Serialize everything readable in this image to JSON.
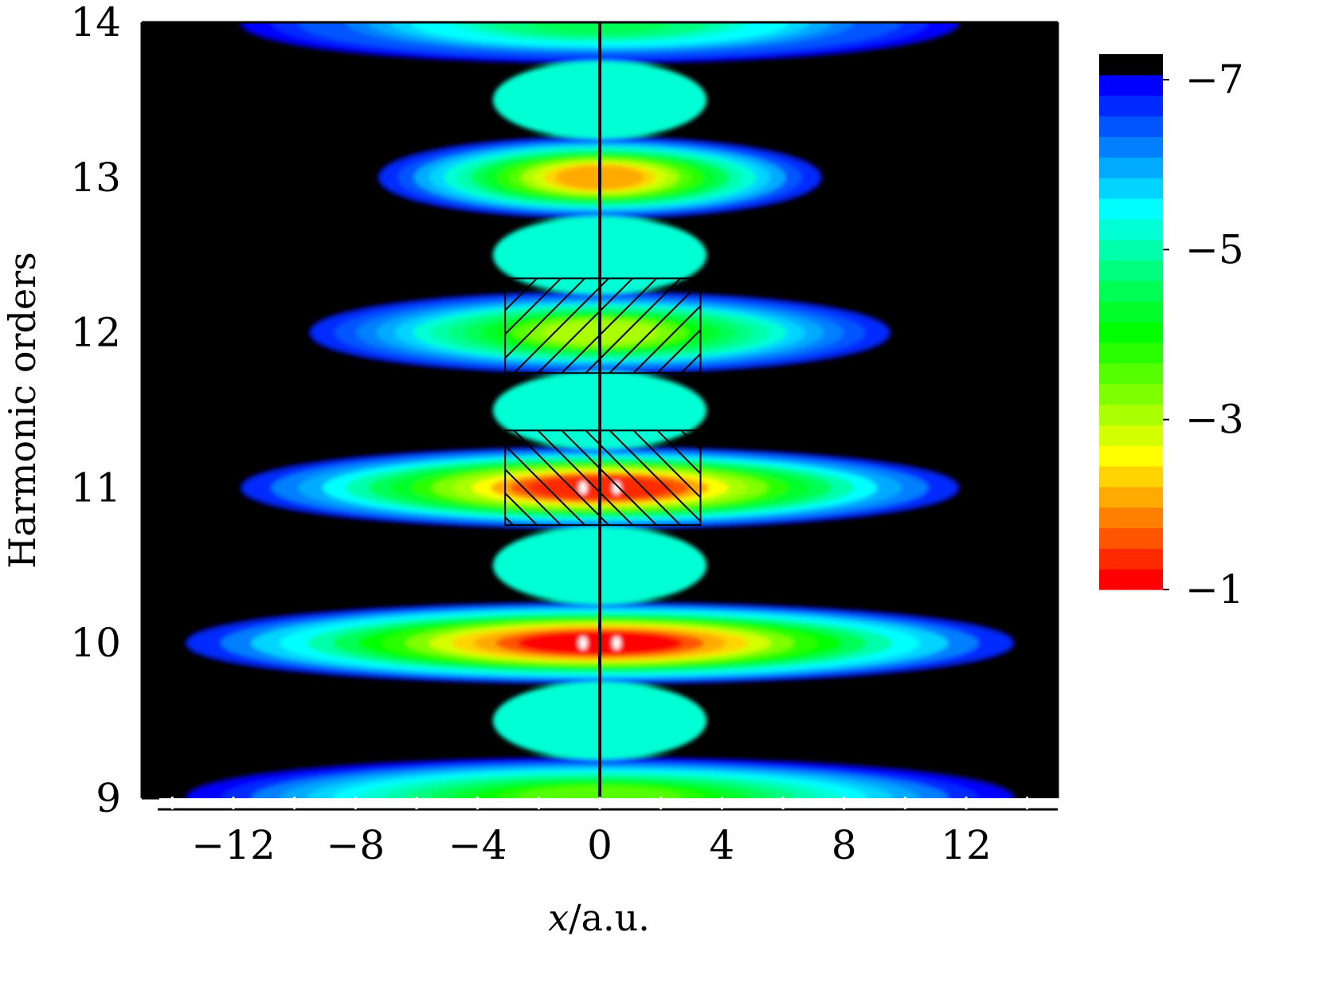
{
  "chart_data": {
    "type": "heatmap",
    "title": "",
    "xlabel_var": "x",
    "xlabel_unit": "/a.u.",
    "ylabel": "Harmonic orders",
    "xlim": [
      -15,
      15
    ],
    "ylim": [
      9,
      14
    ],
    "x_ticks": [
      -12,
      -8,
      -4,
      0,
      4,
      8,
      12
    ],
    "x_tick_labels": [
      "−12",
      "−8",
      "−4",
      "0",
      "4",
      "8",
      "12"
    ],
    "y_ticks": [
      9,
      10,
      11,
      12,
      13,
      14
    ],
    "y_tick_labels": [
      "9",
      "10",
      "11",
      "12",
      "13",
      "14"
    ],
    "colorbar": {
      "range": [
        -1,
        -7.3
      ],
      "ticks": [
        -7,
        -5,
        -3,
        -1
      ],
      "tick_labels": [
        "−7",
        "−5",
        "−3",
        "−1"
      ],
      "colors": [
        "#ff0000",
        "#ff2a00",
        "#ff5500",
        "#ff7f00",
        "#ffaa00",
        "#ffd400",
        "#ffff00",
        "#d4ff00",
        "#aaff00",
        "#7fff00",
        "#55ff00",
        "#2aff00",
        "#00ff00",
        "#00ff2a",
        "#00ff55",
        "#00ff7f",
        "#00ffaa",
        "#00ffd4",
        "#00ffff",
        "#00d4ff",
        "#00aaff",
        "#007fff",
        "#0055ff",
        "#002aff",
        "#0000ff",
        "#000000"
      ]
    },
    "harmonic_bands": [
      {
        "order": 9,
        "peak_value": -3.5,
        "half_width_x": 15.0
      },
      {
        "order": 10,
        "peak_value": -1.0,
        "half_width_x": 15.0
      },
      {
        "order": 11,
        "peak_value": -1.2,
        "half_width_x": 13.0
      },
      {
        "order": 12,
        "peak_value": -3.0,
        "half_width_x": 10.5
      },
      {
        "order": 13,
        "peak_value": -2.0,
        "half_width_x": 8.0
      },
      {
        "order": 14,
        "peak_value": -4.5,
        "half_width_x": 13.0
      }
    ],
    "hatched_regions": [
      {
        "x_range": [
          -3.1,
          3.3
        ],
        "y_range": [
          11.74,
          12.35
        ],
        "hatch": "forward-diagonal"
      },
      {
        "x_range": [
          -3.1,
          3.3
        ],
        "y_range": [
          10.76,
          11.37
        ],
        "hatch": "backward-diagonal"
      }
    ]
  }
}
